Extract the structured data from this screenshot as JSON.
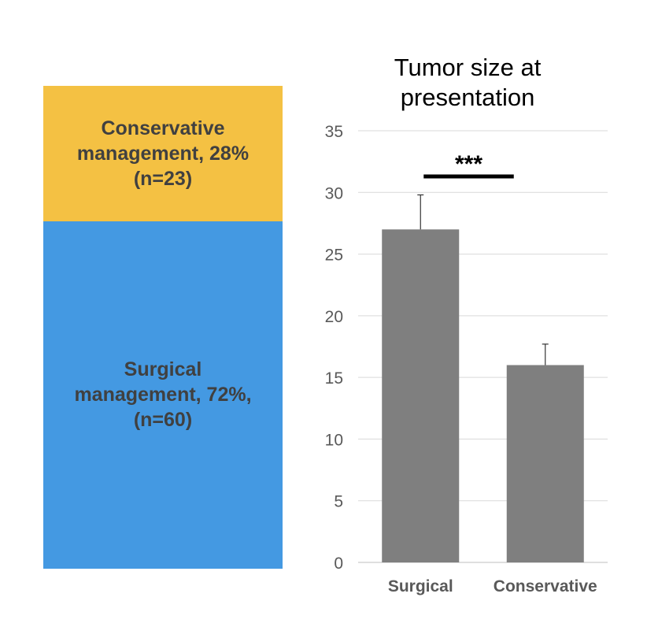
{
  "chart_data": [
    {
      "type": "stacked-bar",
      "title": "",
      "segments": [
        {
          "label": "Conservative management, 28% (n=23)",
          "percent": 28,
          "n": 23,
          "color": "#f4c143"
        },
        {
          "label": "Surgical management, 72%, (n=60)",
          "percent": 72,
          "n": 60,
          "color": "#4499e2"
        }
      ]
    },
    {
      "type": "bar",
      "title": "Tumor size at presentation",
      "categories": [
        "Surgical",
        "Conservative"
      ],
      "values": [
        27,
        16
      ],
      "error_bars": [
        2.8,
        1.7
      ],
      "ylim": [
        0,
        35
      ],
      "yticks": [
        0,
        5,
        10,
        15,
        20,
        25,
        30,
        35
      ],
      "grid": true,
      "bar_color": "#7f7f7f",
      "significance": {
        "label": "***",
        "between": [
          "Surgical",
          "Conservative"
        ]
      }
    }
  ]
}
